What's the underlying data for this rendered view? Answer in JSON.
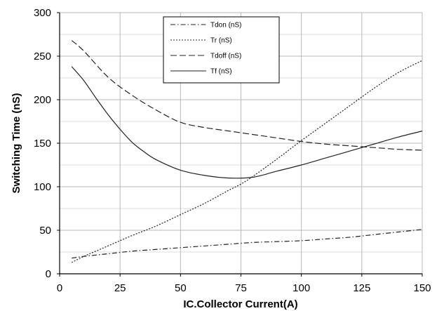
{
  "chart_data": {
    "type": "line",
    "title": "",
    "xlabel": "IC.Collector Current(A)",
    "ylabel": "Switching Time (nS)",
    "xlim": [
      0,
      150
    ],
    "ylim": [
      0,
      300
    ],
    "xticks": [
      0,
      25,
      50,
      75,
      100,
      125,
      150
    ],
    "yticks": [
      0,
      50,
      100,
      150,
      200,
      250,
      300
    ],
    "grid": true,
    "legend_position": "top-center",
    "series": [
      {
        "name": "Tdon (nS)",
        "dash": "dashdot",
        "x": [
          5,
          10,
          20,
          30,
          40,
          50,
          60,
          70,
          80,
          90,
          100,
          110,
          120,
          130,
          140,
          150
        ],
        "y": [
          18,
          20,
          23,
          26,
          28,
          30,
          32,
          34,
          36,
          37,
          38,
          40,
          42,
          45,
          48,
          51
        ]
      },
      {
        "name": "Tr  (nS)",
        "dash": "dotted",
        "x": [
          5,
          10,
          20,
          30,
          40,
          50,
          60,
          70,
          75,
          80,
          90,
          100,
          110,
          120,
          130,
          140,
          150
        ],
        "y": [
          13,
          20,
          32,
          44,
          55,
          68,
          81,
          96,
          103,
          112,
          132,
          153,
          173,
          193,
          213,
          231,
          245
        ]
      },
      {
        "name": "Tdoff (nS)",
        "dash": "dashed",
        "x": [
          5,
          10,
          20,
          30,
          40,
          50,
          60,
          70,
          80,
          90,
          100,
          110,
          120,
          130,
          140,
          150
        ],
        "y": [
          268,
          256,
          226,
          205,
          188,
          174,
          168,
          164,
          160,
          156,
          152,
          149,
          147,
          145,
          143,
          142
        ]
      },
      {
        "name": "Tf (nS)",
        "dash": "solid",
        "x": [
          5,
          10,
          15,
          20,
          25,
          30,
          35,
          40,
          50,
          60,
          70,
          80,
          90,
          100,
          110,
          120,
          130,
          140,
          150
        ],
        "y": [
          238,
          222,
          202,
          183,
          166,
          151,
          140,
          131,
          119,
          113,
          110,
          111,
          118,
          125,
          133,
          141,
          149,
          157,
          164
        ]
      }
    ]
  },
  "colors": {
    "line": "#222222",
    "grid_major": "#b8b8b8",
    "grid_minor": "#dcdcdc"
  }
}
